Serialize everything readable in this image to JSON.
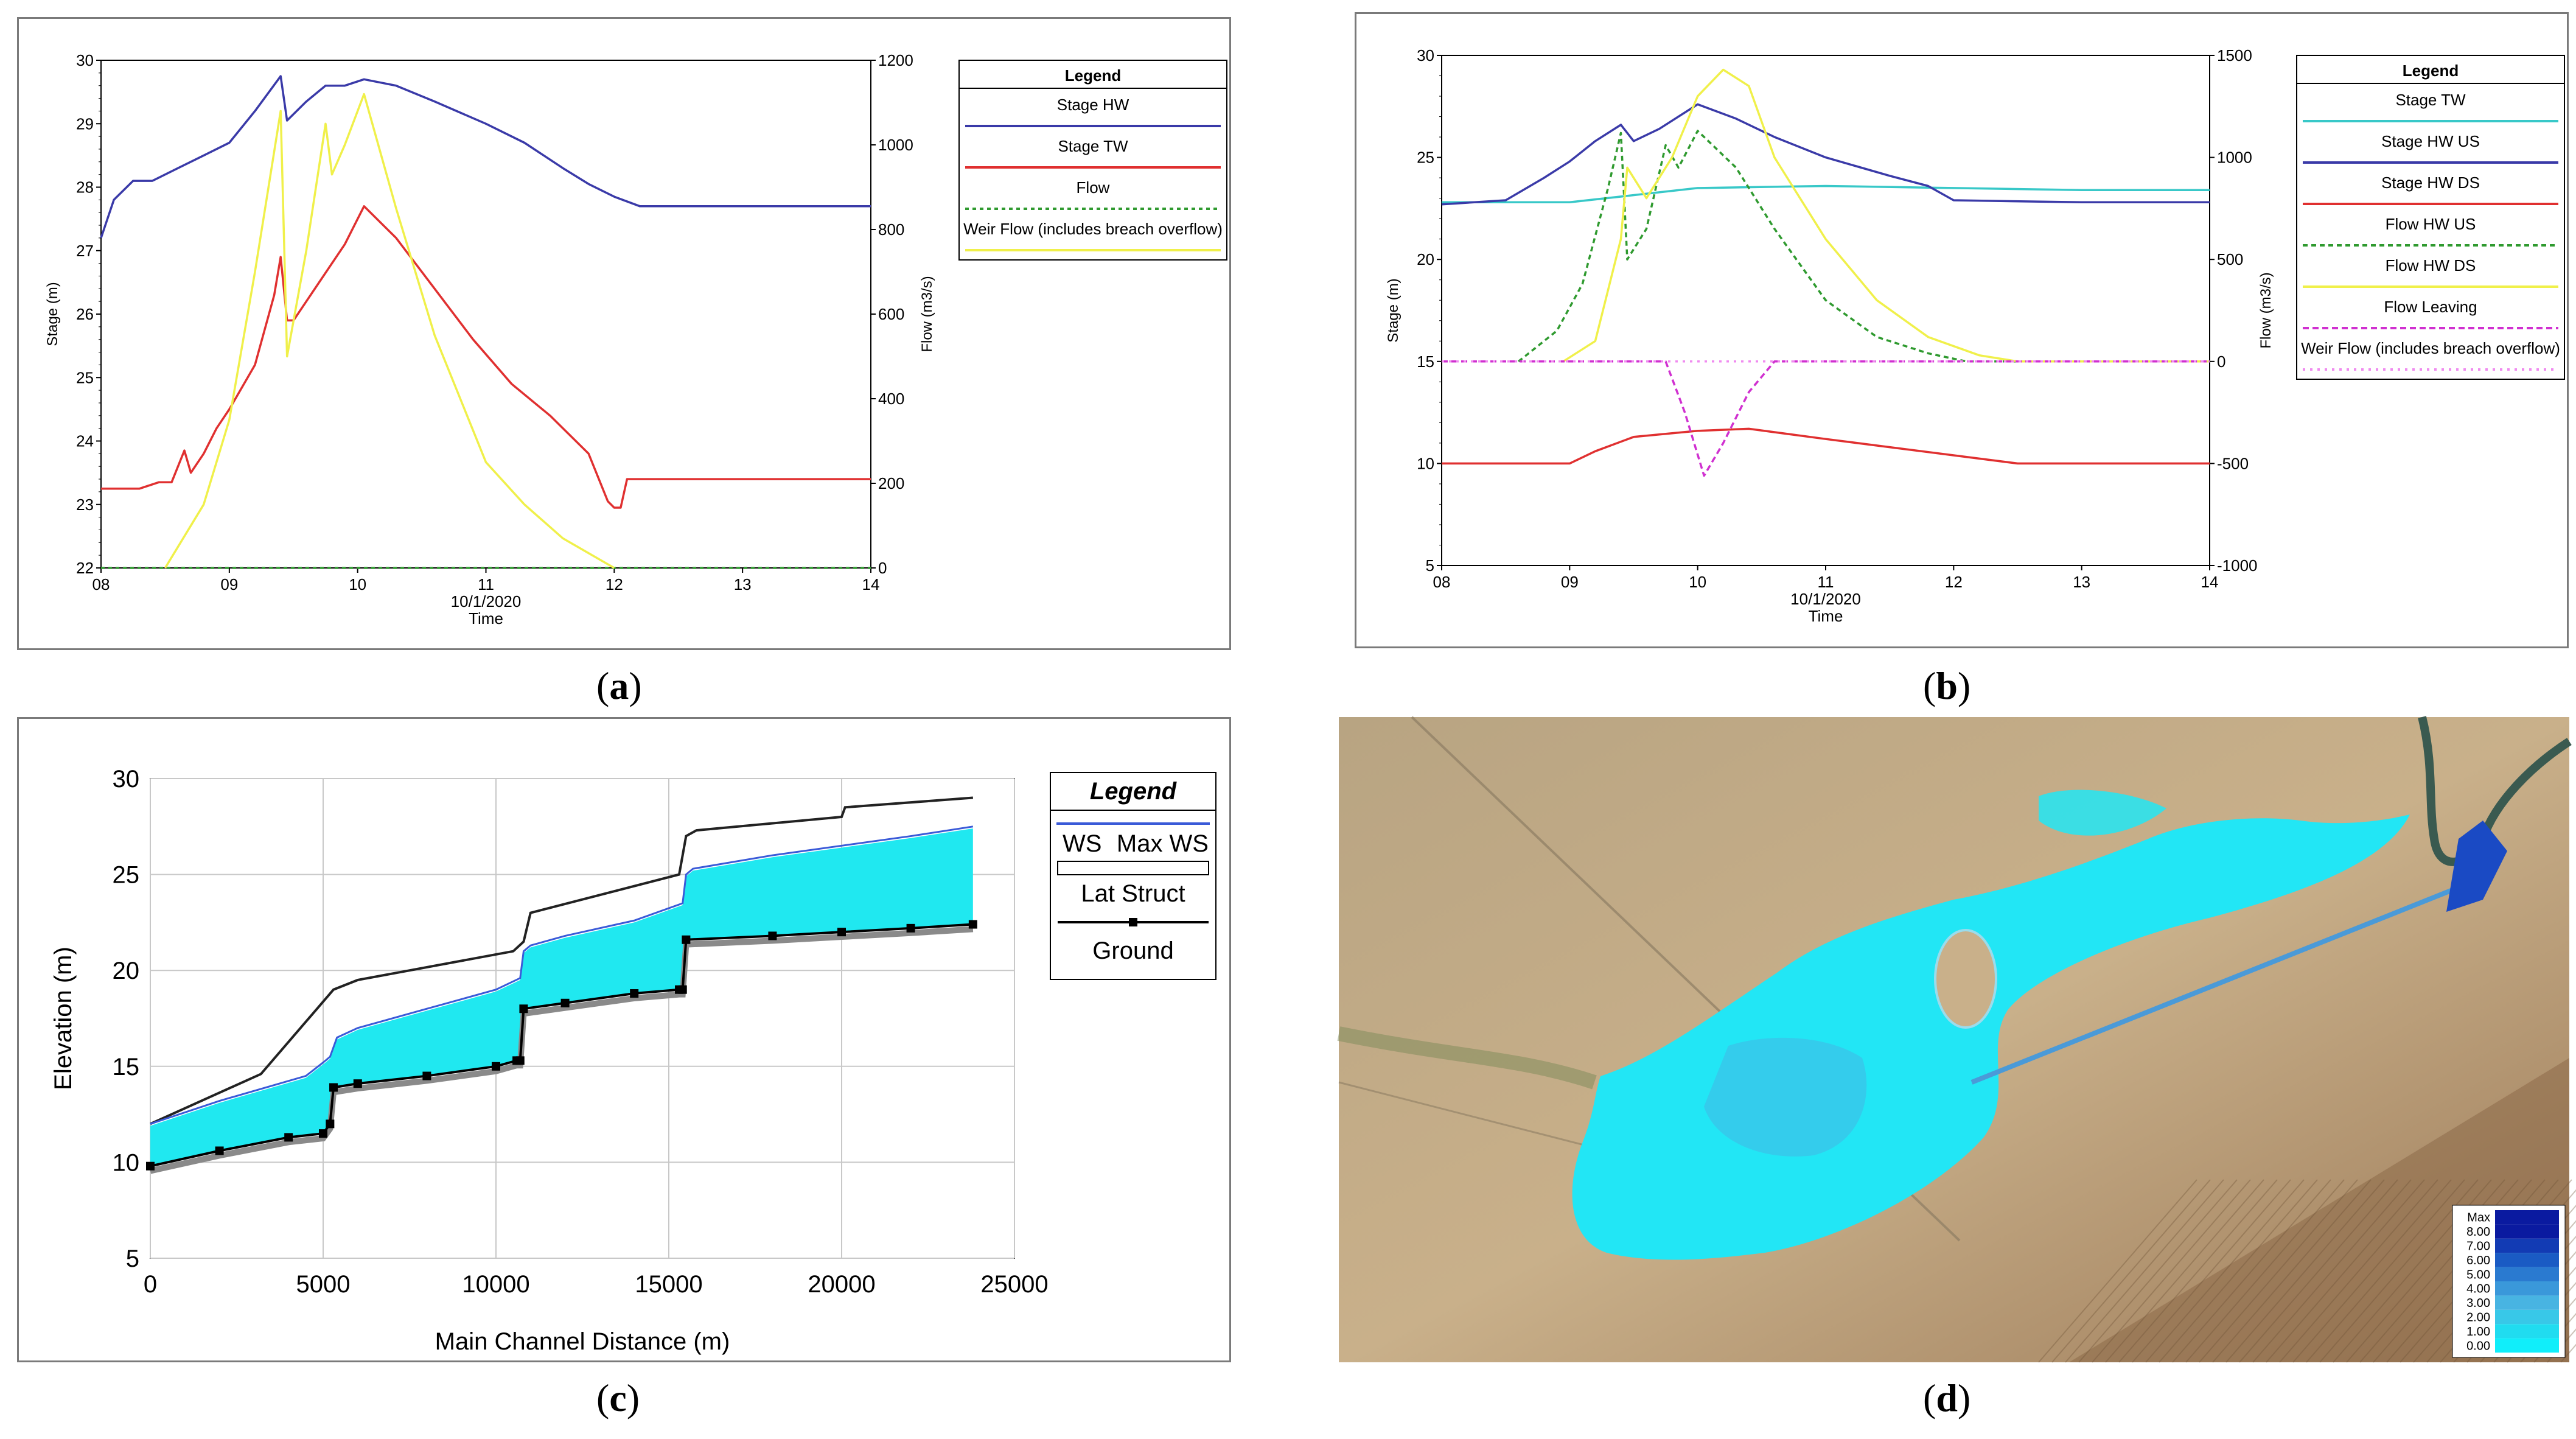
{
  "captions": {
    "a": "a",
    "b": "b",
    "c": "c",
    "d": "d"
  },
  "chart_data": [
    {
      "id": "a",
      "type": "line",
      "legend_title": "Legend",
      "xlabel": "Time",
      "xlabel_date": "10/1/2020",
      "ylabel": "Stage (m)",
      "y2label": "Flow (m3/s)",
      "xlim": [
        8,
        14
      ],
      "ylim": [
        22,
        30
      ],
      "y2lim": [
        0,
        1200
      ],
      "xticks": [
        "08",
        "09",
        "10",
        "11",
        "12",
        "13",
        "14"
      ],
      "yticks": [
        "22",
        "23",
        "24",
        "25",
        "26",
        "27",
        "28",
        "29",
        "30"
      ],
      "y2ticks": [
        "0",
        "200",
        "400",
        "600",
        "800",
        "1000",
        "1200"
      ],
      "series": [
        {
          "name": "Stage HW",
          "color": "#3a3aa8",
          "dash": "",
          "axis": "left",
          "x": [
            8.0,
            8.1,
            8.25,
            8.4,
            8.6,
            8.8,
            9.0,
            9.2,
            9.4,
            9.45,
            9.6,
            9.75,
            9.9,
            10.05,
            10.3,
            10.6,
            11.0,
            11.3,
            11.6,
            11.8,
            12.0,
            12.2,
            12.5,
            13.0,
            13.5,
            14.0
          ],
          "y": [
            27.2,
            27.8,
            28.1,
            28.1,
            28.3,
            28.5,
            28.7,
            29.2,
            29.75,
            29.05,
            29.35,
            29.6,
            29.6,
            29.7,
            29.6,
            29.35,
            29.0,
            28.7,
            28.3,
            28.05,
            27.85,
            27.7,
            27.7,
            27.7,
            27.7,
            27.7
          ]
        },
        {
          "name": "Stage TW",
          "color": "#e03030",
          "dash": "",
          "axis": "left",
          "x": [
            8.0,
            8.3,
            8.45,
            8.55,
            8.65,
            8.7,
            8.8,
            8.9,
            9.0,
            9.2,
            9.35,
            9.4,
            9.45,
            9.5,
            9.7,
            9.9,
            10.05,
            10.3,
            10.6,
            10.9,
            11.2,
            11.5,
            11.8,
            11.95,
            12.0,
            12.05,
            12.1,
            12.5,
            13.0,
            14.0
          ],
          "y": [
            23.25,
            23.25,
            23.35,
            23.35,
            23.85,
            23.5,
            23.8,
            24.2,
            24.5,
            25.2,
            26.3,
            26.9,
            25.9,
            25.9,
            26.5,
            27.1,
            27.7,
            27.2,
            26.4,
            25.6,
            24.9,
            24.4,
            23.8,
            23.05,
            22.95,
            22.95,
            23.4,
            23.4,
            23.4,
            23.4
          ]
        },
        {
          "name": "Flow",
          "color": "#2f9a2f",
          "dash": "6,6",
          "axis": "right",
          "x": [
            8.0,
            14.0
          ],
          "y": [
            0,
            0
          ]
        },
        {
          "name": "Weir Flow (includes breach overflow)",
          "color": "#f0f04a",
          "dash": "",
          "axis": "right",
          "x": [
            8.5,
            8.8,
            9.0,
            9.2,
            9.4,
            9.45,
            9.6,
            9.75,
            9.8,
            9.9,
            10.05,
            10.3,
            10.6,
            11.0,
            11.3,
            11.6,
            12.0
          ],
          "y": [
            0,
            150,
            350,
            700,
            1080,
            500,
            750,
            1050,
            930,
            1000,
            1120,
            850,
            550,
            250,
            150,
            70,
            0
          ]
        }
      ]
    },
    {
      "id": "b",
      "type": "line",
      "legend_title": "Legend",
      "xlabel": "Time",
      "xlabel_date": "10/1/2020",
      "ylabel": "Stage (m)",
      "y2label": "Flow (m3/s)",
      "xlim": [
        8,
        14
      ],
      "ylim": [
        5,
        30
      ],
      "y2lim": [
        -1000,
        1500
      ],
      "xticks": [
        "08",
        "09",
        "10",
        "11",
        "12",
        "13",
        "14"
      ],
      "yticks": [
        "5",
        "10",
        "15",
        "20",
        "25",
        "30"
      ],
      "y2ticks": [
        "-1000",
        "-500",
        "0",
        "500",
        "1000",
        "1500"
      ],
      "series": [
        {
          "name": "Stage TW",
          "color": "#38c8c8",
          "dash": "",
          "axis": "left",
          "x": [
            8.0,
            9.0,
            10.0,
            11.0,
            12.0,
            13.0,
            14.0
          ],
          "y": [
            22.8,
            22.8,
            23.5,
            23.6,
            23.5,
            23.4,
            23.4
          ]
        },
        {
          "name": "Stage HW US",
          "color": "#3a3aa8",
          "dash": "",
          "axis": "left",
          "x": [
            8.0,
            8.5,
            8.8,
            9.0,
            9.2,
            9.4,
            9.5,
            9.7,
            10.0,
            10.3,
            10.6,
            11.0,
            11.5,
            11.8,
            12.0,
            13.0,
            14.0
          ],
          "y": [
            22.7,
            22.9,
            24.0,
            24.8,
            25.8,
            26.6,
            25.8,
            26.4,
            27.6,
            26.9,
            26.0,
            25.0,
            24.1,
            23.6,
            22.9,
            22.8,
            22.8
          ]
        },
        {
          "name": "Stage HW DS",
          "color": "#e03030",
          "dash": "",
          "axis": "left",
          "x": [
            8.0,
            9.0,
            9.2,
            9.5,
            10.0,
            10.4,
            11.0,
            11.5,
            12.0,
            12.5,
            13.0,
            14.0
          ],
          "y": [
            10.0,
            10.0,
            10.6,
            11.3,
            11.6,
            11.7,
            11.2,
            10.8,
            10.4,
            10.0,
            10.0,
            10.0
          ]
        },
        {
          "name": "Flow HW US",
          "color": "#2f9a2f",
          "dash": "8,6",
          "axis": "right",
          "x": [
            8.6,
            8.9,
            9.1,
            9.3,
            9.4,
            9.45,
            9.6,
            9.75,
            9.85,
            10.0,
            10.3,
            10.6,
            11.0,
            11.4,
            11.8,
            12.1,
            14.0
          ],
          "y": [
            0,
            150,
            380,
            850,
            1120,
            500,
            650,
            1060,
            950,
            1130,
            950,
            650,
            300,
            120,
            40,
            0,
            0
          ]
        },
        {
          "name": "Flow HW DS",
          "color": "#f0f04a",
          "dash": "",
          "axis": "right",
          "x": [
            8.95,
            9.2,
            9.4,
            9.45,
            9.6,
            9.8,
            10.0,
            10.2,
            10.4,
            10.6,
            11.0,
            11.4,
            11.8,
            12.2,
            12.5,
            14.0
          ],
          "y": [
            0,
            100,
            600,
            950,
            800,
            1000,
            1300,
            1430,
            1350,
            1000,
            600,
            300,
            120,
            30,
            0,
            0
          ]
        },
        {
          "name": "Flow Leaving",
          "color": "#d030d0",
          "dash": "10,6",
          "axis": "right",
          "x": [
            8.0,
            9.75,
            9.9,
            10.05,
            10.2,
            10.4,
            10.6,
            14.0
          ],
          "y": [
            0,
            0,
            -250,
            -560,
            -400,
            -150,
            0,
            0
          ]
        },
        {
          "name": "Weir Flow (includes breach overflow)",
          "color": "#f08cf0",
          "dash": "4,8",
          "axis": "right",
          "x": [
            8.0,
            14.0
          ],
          "y": [
            0,
            0
          ]
        }
      ]
    },
    {
      "id": "c",
      "type": "area",
      "legend_title": "Legend",
      "legend_ws": "WS",
      "legend_maxws": "Max WS",
      "legend_lat": "Lat Struct",
      "legend_ground": "Ground",
      "xlabel": "Main Channel Distance (m)",
      "ylabel": "Elevation (m)",
      "xlim": [
        0,
        25000
      ],
      "ylim": [
        5,
        30
      ],
      "xticks": [
        "0",
        "5000",
        "10000",
        "15000",
        "20000",
        "25000"
      ],
      "yticks": [
        "5",
        "10",
        "15",
        "20",
        "25",
        "30"
      ],
      "series": [
        {
          "name": "Lat Struct",
          "color": "#222222",
          "x": [
            0,
            3200,
            5300,
            6000,
            10500,
            10800,
            11000,
            15300,
            15500,
            15800,
            20000,
            20100,
            23800
          ],
          "y": [
            12.0,
            14.6,
            19.0,
            19.5,
            21.0,
            21.5,
            23.0,
            25.0,
            27.0,
            27.3,
            28.0,
            28.5,
            29.0
          ]
        },
        {
          "name": "Max WS",
          "color": "#3a5ad8",
          "x": [
            0,
            2000,
            4500,
            5000,
            5200,
            5400,
            6000,
            8000,
            10000,
            10700,
            10800,
            11000,
            12000,
            14000,
            15400,
            15500,
            15700,
            18000,
            20000,
            22000,
            23800
          ],
          "y": [
            12.0,
            13.2,
            14.5,
            15.2,
            15.5,
            16.5,
            17.0,
            18.0,
            19.0,
            19.6,
            21.0,
            21.3,
            21.8,
            22.6,
            23.5,
            25.0,
            25.3,
            26.0,
            26.5,
            27.0,
            27.5
          ]
        },
        {
          "name": "WS",
          "color": "#20e8f0",
          "x": [
            0,
            2000,
            4500,
            5000,
            5200,
            5400,
            6000,
            8000,
            10000,
            10700,
            10800,
            11000,
            12000,
            14000,
            15400,
            15500,
            15700,
            18000,
            20000,
            22000,
            23800
          ],
          "y": [
            11.9,
            13.1,
            14.4,
            15.1,
            15.4,
            16.4,
            16.9,
            17.9,
            18.9,
            19.5,
            20.9,
            21.2,
            21.7,
            22.5,
            23.4,
            24.9,
            25.2,
            25.9,
            26.4,
            26.9,
            27.4
          ]
        },
        {
          "name": "Ground",
          "color": "#000000",
          "x": [
            0,
            2000,
            4000,
            5000,
            5200,
            5300,
            6000,
            8000,
            10000,
            10600,
            10700,
            10800,
            12000,
            14000,
            15300,
            15400,
            15500,
            18000,
            20000,
            22000,
            23800
          ],
          "y": [
            9.8,
            10.6,
            11.3,
            11.5,
            12.0,
            13.9,
            14.1,
            14.5,
            15.0,
            15.3,
            15.3,
            18.0,
            18.3,
            18.8,
            19.0,
            19.0,
            21.6,
            21.8,
            22.0,
            22.2,
            22.4
          ]
        }
      ]
    }
  ],
  "map_d": {
    "legend_labels": [
      "Max",
      "8.00",
      "7.00",
      "6.00",
      "5.00",
      "4.00",
      "3.00",
      "2.00",
      "1.00",
      "0.00"
    ],
    "legend_colors": [
      "#0a1aa0",
      "#0a1aa0",
      "#123bb4",
      "#1a5bc4",
      "#2a7ad0",
      "#3a98da",
      "#48b4e2",
      "#38c8e8",
      "#20dcf0",
      "#10eefa"
    ],
    "land_color": "#c9b08a",
    "water_color": "#22e6f5"
  }
}
